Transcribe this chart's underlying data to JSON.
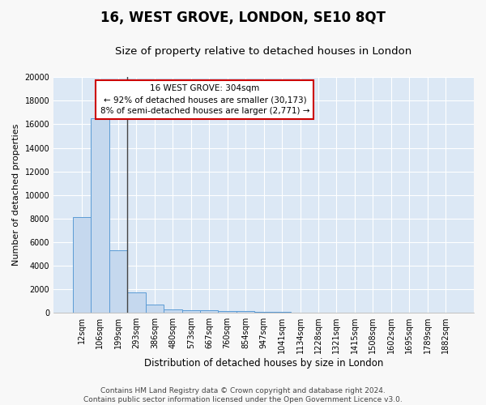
{
  "title": "16, WEST GROVE, LONDON, SE10 8QT",
  "subtitle": "Size of property relative to detached houses in London",
  "xlabel": "Distribution of detached houses by size in London",
  "ylabel": "Number of detached properties",
  "categories": [
    "12sqm",
    "106sqm",
    "199sqm",
    "293sqm",
    "386sqm",
    "480sqm",
    "573sqm",
    "667sqm",
    "760sqm",
    "854sqm",
    "947sqm",
    "1041sqm",
    "1134sqm",
    "1228sqm",
    "1321sqm",
    "1415sqm",
    "1508sqm",
    "1602sqm",
    "1695sqm",
    "1789sqm",
    "1882sqm"
  ],
  "values": [
    8100,
    16500,
    5300,
    1750,
    700,
    300,
    230,
    200,
    175,
    150,
    100,
    60,
    40,
    30,
    20,
    15,
    12,
    10,
    8,
    6,
    5
  ],
  "bar_color": "#c5d8ee",
  "bar_edge_color": "#5b9bd5",
  "annotation_text": "16 WEST GROVE: 304sqm\n← 92% of detached houses are smaller (30,173)\n8% of semi-detached houses are larger (2,771) →",
  "annotation_box_color": "#ffffff",
  "annotation_box_edge_color": "#cc0000",
  "vline_color": "#444444",
  "background_color": "#dce8f5",
  "fig_background_color": "#f8f8f8",
  "grid_color": "#ffffff",
  "ylim": [
    0,
    20000
  ],
  "yticks": [
    0,
    2000,
    4000,
    6000,
    8000,
    10000,
    12000,
    14000,
    16000,
    18000,
    20000
  ],
  "footer": "Contains HM Land Registry data © Crown copyright and database right 2024.\nContains public sector information licensed under the Open Government Licence v3.0.",
  "title_fontsize": 12,
  "subtitle_fontsize": 9.5,
  "xlabel_fontsize": 8.5,
  "ylabel_fontsize": 8,
  "tick_fontsize": 7,
  "footer_fontsize": 6.5,
  "annotation_fontsize": 7.5
}
